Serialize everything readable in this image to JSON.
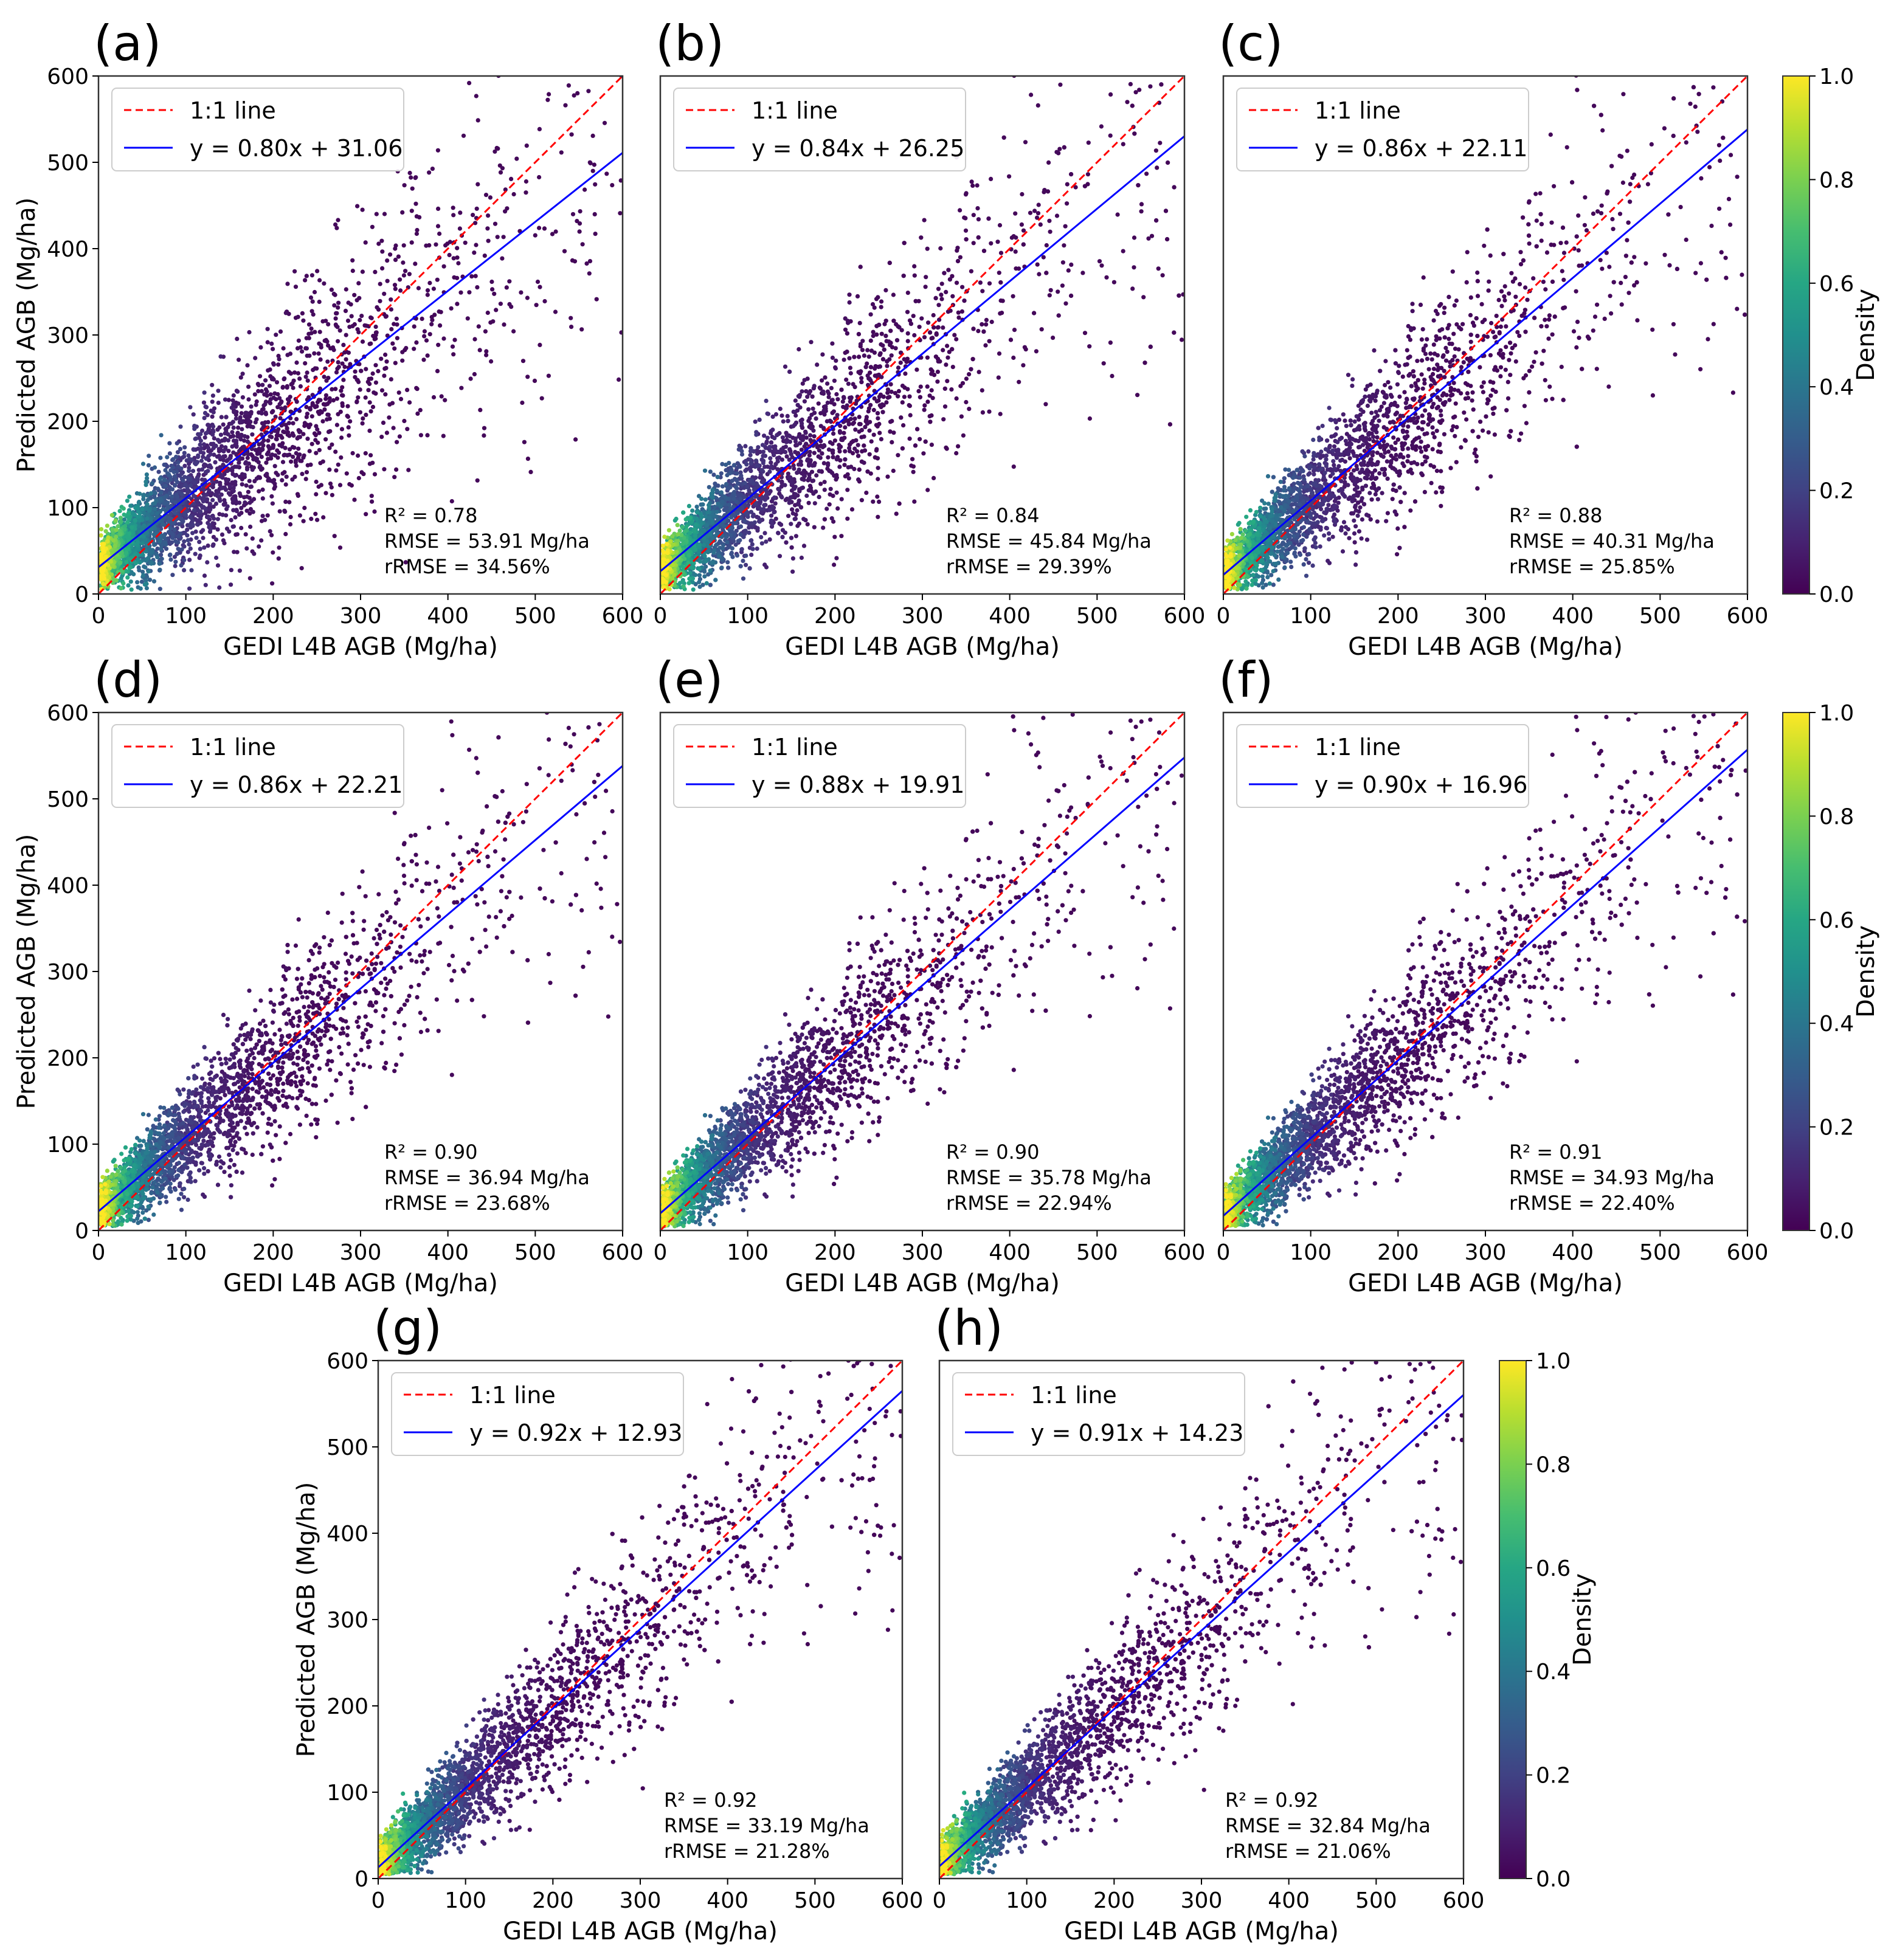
{
  "chart_data": [
    {
      "type": "scatter",
      "panel_label": "(a)",
      "xlabel": "GEDI L4B AGB (Mg/ha)",
      "ylabel": "Predicted AGB (Mg/ha)",
      "xlim": [
        0,
        600
      ],
      "ylim": [
        0,
        600
      ],
      "xticks": [
        0,
        100,
        200,
        300,
        400,
        500,
        600
      ],
      "yticks": [
        0,
        100,
        200,
        300,
        400,
        500,
        600
      ],
      "legend": {
        "placement": "top-left",
        "one_to_one_label": "1:1 line",
        "fit_label": "y = 0.80x + 31.06"
      },
      "fit": {
        "slope": 0.8,
        "intercept": 31.06
      },
      "stats": {
        "r2": "R² = 0.78",
        "rmse": "RMSE = 53.91 Mg/ha",
        "rrmse": "rRMSE = 34.56%"
      }
    },
    {
      "type": "scatter",
      "panel_label": "(b)",
      "xlabel": "GEDI L4B AGB (Mg/ha)",
      "ylabel": "",
      "xlim": [
        0,
        600
      ],
      "ylim": [
        0,
        600
      ],
      "xticks": [
        0,
        100,
        200,
        300,
        400,
        500,
        600
      ],
      "yticks": [],
      "legend": {
        "placement": "top-left",
        "one_to_one_label": "1:1 line",
        "fit_label": "y = 0.84x + 26.25"
      },
      "fit": {
        "slope": 0.84,
        "intercept": 26.25
      },
      "stats": {
        "r2": "R² = 0.84",
        "rmse": "RMSE = 45.84 Mg/ha",
        "rrmse": "rRMSE = 29.39%"
      }
    },
    {
      "type": "scatter",
      "panel_label": "(c)",
      "xlabel": "GEDI L4B AGB (Mg/ha)",
      "ylabel": "",
      "xlim": [
        0,
        600
      ],
      "ylim": [
        0,
        600
      ],
      "xticks": [
        0,
        100,
        200,
        300,
        400,
        500,
        600
      ],
      "yticks": [],
      "legend": {
        "placement": "top-left",
        "one_to_one_label": "1:1 line",
        "fit_label": "y = 0.86x + 22.11"
      },
      "fit": {
        "slope": 0.86,
        "intercept": 22.11
      },
      "stats": {
        "r2": "R² = 0.88",
        "rmse": "RMSE = 40.31 Mg/ha",
        "rrmse": "rRMSE = 25.85%"
      }
    },
    {
      "type": "scatter",
      "panel_label": "(d)",
      "xlabel": "GEDI L4B AGB (Mg/ha)",
      "ylabel": "Predicted AGB (Mg/ha)",
      "xlim": [
        0,
        600
      ],
      "ylim": [
        0,
        600
      ],
      "xticks": [
        0,
        100,
        200,
        300,
        400,
        500,
        600
      ],
      "yticks": [
        0,
        100,
        200,
        300,
        400,
        500,
        600
      ],
      "legend": {
        "placement": "top-left",
        "one_to_one_label": "1:1 line",
        "fit_label": "y = 0.86x + 22.21"
      },
      "fit": {
        "slope": 0.86,
        "intercept": 22.21
      },
      "stats": {
        "r2": "R² = 0.90",
        "rmse": "RMSE = 36.94 Mg/ha",
        "rrmse": "rRMSE = 23.68%"
      }
    },
    {
      "type": "scatter",
      "panel_label": "(e)",
      "xlabel": "GEDI L4B AGB (Mg/ha)",
      "ylabel": "",
      "xlim": [
        0,
        600
      ],
      "ylim": [
        0,
        600
      ],
      "xticks": [
        0,
        100,
        200,
        300,
        400,
        500,
        600
      ],
      "yticks": [],
      "legend": {
        "placement": "top-left",
        "one_to_one_label": "1:1 line",
        "fit_label": "y = 0.88x + 19.91"
      },
      "fit": {
        "slope": 0.88,
        "intercept": 19.91
      },
      "stats": {
        "r2": "R² = 0.90",
        "rmse": "RMSE = 35.78 Mg/ha",
        "rrmse": "rRMSE = 22.94%"
      }
    },
    {
      "type": "scatter",
      "panel_label": "(f)",
      "xlabel": "GEDI L4B AGB (Mg/ha)",
      "ylabel": "",
      "xlim": [
        0,
        600
      ],
      "ylim": [
        0,
        600
      ],
      "xticks": [
        0,
        100,
        200,
        300,
        400,
        500,
        600
      ],
      "yticks": [],
      "legend": {
        "placement": "top-left",
        "one_to_one_label": "1:1 line",
        "fit_label": "y = 0.90x + 16.96"
      },
      "fit": {
        "slope": 0.9,
        "intercept": 16.96
      },
      "stats": {
        "r2": "R² = 0.91",
        "rmse": "RMSE = 34.93 Mg/ha",
        "rrmse": "rRMSE = 22.40%"
      }
    },
    {
      "type": "scatter",
      "panel_label": "(g)",
      "xlabel": "GEDI L4B AGB (Mg/ha)",
      "ylabel": "Predicted AGB (Mg/ha)",
      "xlim": [
        0,
        600
      ],
      "ylim": [
        0,
        600
      ],
      "xticks": [
        0,
        100,
        200,
        300,
        400,
        500,
        600
      ],
      "yticks": [
        0,
        100,
        200,
        300,
        400,
        500,
        600
      ],
      "legend": {
        "placement": "top-left",
        "one_to_one_label": "1:1 line",
        "fit_label": "y = 0.92x + 12.93"
      },
      "fit": {
        "slope": 0.92,
        "intercept": 12.93
      },
      "stats": {
        "r2": "R² = 0.92",
        "rmse": "RMSE = 33.19 Mg/ha",
        "rrmse": "rRMSE = 21.28%"
      }
    },
    {
      "type": "scatter",
      "panel_label": "(h)",
      "xlabel": "GEDI L4B AGB (Mg/ha)",
      "ylabel": "",
      "xlim": [
        0,
        600
      ],
      "ylim": [
        0,
        600
      ],
      "xticks": [
        0,
        100,
        200,
        300,
        400,
        500,
        600
      ],
      "yticks": [],
      "legend": {
        "placement": "top-left",
        "one_to_one_label": "1:1 line",
        "fit_label": "y = 0.91x + 14.23"
      },
      "fit": {
        "slope": 0.91,
        "intercept": 14.23
      },
      "stats": {
        "r2": "R² = 0.92",
        "rmse": "RMSE = 32.84 Mg/ha",
        "rrmse": "rRMSE = 21.06%"
      }
    }
  ],
  "colorbar": {
    "label": "Density",
    "range": [
      0,
      1
    ],
    "ticks": [
      "0.0",
      "0.2",
      "0.4",
      "0.6",
      "0.8",
      "1.0"
    ],
    "colormap": "viridis",
    "stops": [
      "#440154",
      "#3b528b",
      "#21918c",
      "#5ec962",
      "#fde725"
    ]
  },
  "colors": {
    "one_to_one_line": "#ff0000",
    "fit_line": "#0000ff",
    "point_base": "#440154",
    "axes": "#000000"
  }
}
